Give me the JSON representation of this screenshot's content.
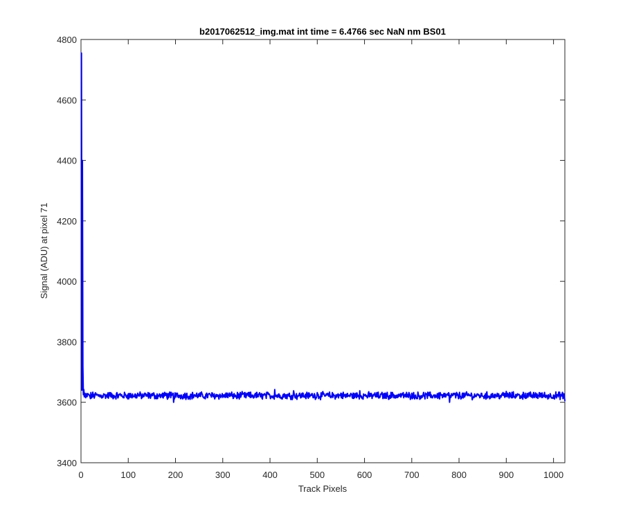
{
  "chart_data": {
    "type": "line",
    "title": "b2017062512_img.mat int time = 6.4766 sec  NaN nm BS01",
    "xlabel": "Track Pixels",
    "ylabel": "Signal (ADU) at pixel 71",
    "xlim": [
      0,
      1024
    ],
    "ylim": [
      3400,
      4800
    ],
    "xticks": [
      0,
      100,
      200,
      300,
      400,
      500,
      600,
      700,
      800,
      900,
      1000
    ],
    "yticks": [
      3400,
      3600,
      3800,
      4000,
      4200,
      4400,
      4600,
      4800
    ],
    "grid": false,
    "line_color": "#0000ff",
    "series": [
      {
        "noise_level": 3622,
        "x": [
          1,
          2,
          3,
          4,
          5,
          6,
          7,
          8,
          10,
          15,
          20,
          30,
          40,
          50,
          60,
          70,
          80,
          90,
          100,
          110,
          120,
          130,
          140,
          150,
          160,
          170,
          180,
          190,
          196,
          200,
          210,
          220,
          230,
          240,
          250,
          260,
          270,
          280,
          290,
          300,
          310,
          320,
          330,
          340,
          350,
          360,
          370,
          380,
          390,
          400,
          410,
          420,
          430,
          440,
          450,
          460,
          470,
          480,
          490,
          500,
          510,
          520,
          530,
          540,
          550,
          560,
          570,
          580,
          590,
          600,
          610,
          620,
          630,
          640,
          650,
          660,
          670,
          680,
          690,
          700,
          710,
          720,
          730,
          740,
          750,
          760,
          770,
          780,
          790,
          800,
          810,
          820,
          830,
          840,
          850,
          860,
          870,
          880,
          890,
          900,
          910,
          920,
          930,
          940,
          950,
          960,
          970,
          980,
          990,
          1000,
          1010,
          1020,
          1024
        ],
        "y": [
          4755,
          3640,
          4400,
          3720,
          3625,
          3642,
          3618,
          3630,
          3615,
          3628,
          3612,
          3630,
          3618,
          3625,
          3632,
          3615,
          3625,
          3620,
          3628,
          3618,
          3630,
          3616,
          3624,
          3628,
          3612,
          3622,
          3630,
          3615,
          3600,
          3625,
          3618,
          3630,
          3612,
          3625,
          3620,
          3614,
          3628,
          3618,
          3624,
          3616,
          3630,
          3620,
          3612,
          3628,
          3622,
          3616,
          3630,
          3618,
          3624,
          3620,
          3642,
          3616,
          3628,
          3620,
          3638,
          3622,
          3630,
          3618,
          3626,
          3632,
          3620,
          3628,
          3618,
          3625,
          3630,
          3616,
          3624,
          3620,
          3638,
          3622,
          3618,
          3626,
          3614,
          3624,
          3620,
          3628,
          3616,
          3624,
          3618,
          3630,
          3612,
          3622,
          3626,
          3616,
          3624,
          3632,
          3618,
          3600,
          3626,
          3614,
          3622,
          3628,
          3616,
          3624,
          3620,
          3614,
          3628,
          3618,
          3624,
          3636,
          3620,
          3626,
          3614,
          3630,
          3620,
          3616,
          3632,
          3620,
          3614,
          3624,
          3618,
          3612,
          3606
        ]
      }
    ]
  }
}
